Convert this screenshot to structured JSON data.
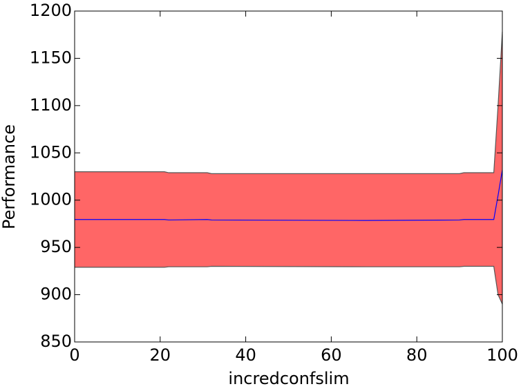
{
  "chart_data": {
    "type": "line",
    "xlabel": "incredconfslim",
    "ylabel": "Performance",
    "x": [
      0,
      21,
      22,
      31,
      32,
      68,
      90,
      91,
      98,
      99,
      100
    ],
    "values": [
      979.5,
      979.5,
      979,
      979.5,
      979,
      978.5,
      979,
      979.5,
      979.5,
      1005,
      1032
    ],
    "color": "#0000ff",
    "band": {
      "upper": [
        1030,
        1030,
        1029,
        1029,
        1028,
        1028,
        1028,
        1029,
        1029,
        1100,
        1178
      ],
      "lower": [
        929,
        929,
        929.5,
        929.5,
        930,
        929.5,
        929.5,
        930,
        930,
        900,
        890
      ],
      "color": "#ff6666",
      "edge_color": "#555555"
    },
    "xlim": [
      0,
      100
    ],
    "xticks": [
      0,
      20,
      40,
      60,
      80,
      100
    ],
    "ylim": [
      850,
      1200
    ],
    "yticks": [
      850,
      900,
      950,
      1000,
      1050,
      1100,
      1150,
      1200
    ],
    "grid": false
  }
}
